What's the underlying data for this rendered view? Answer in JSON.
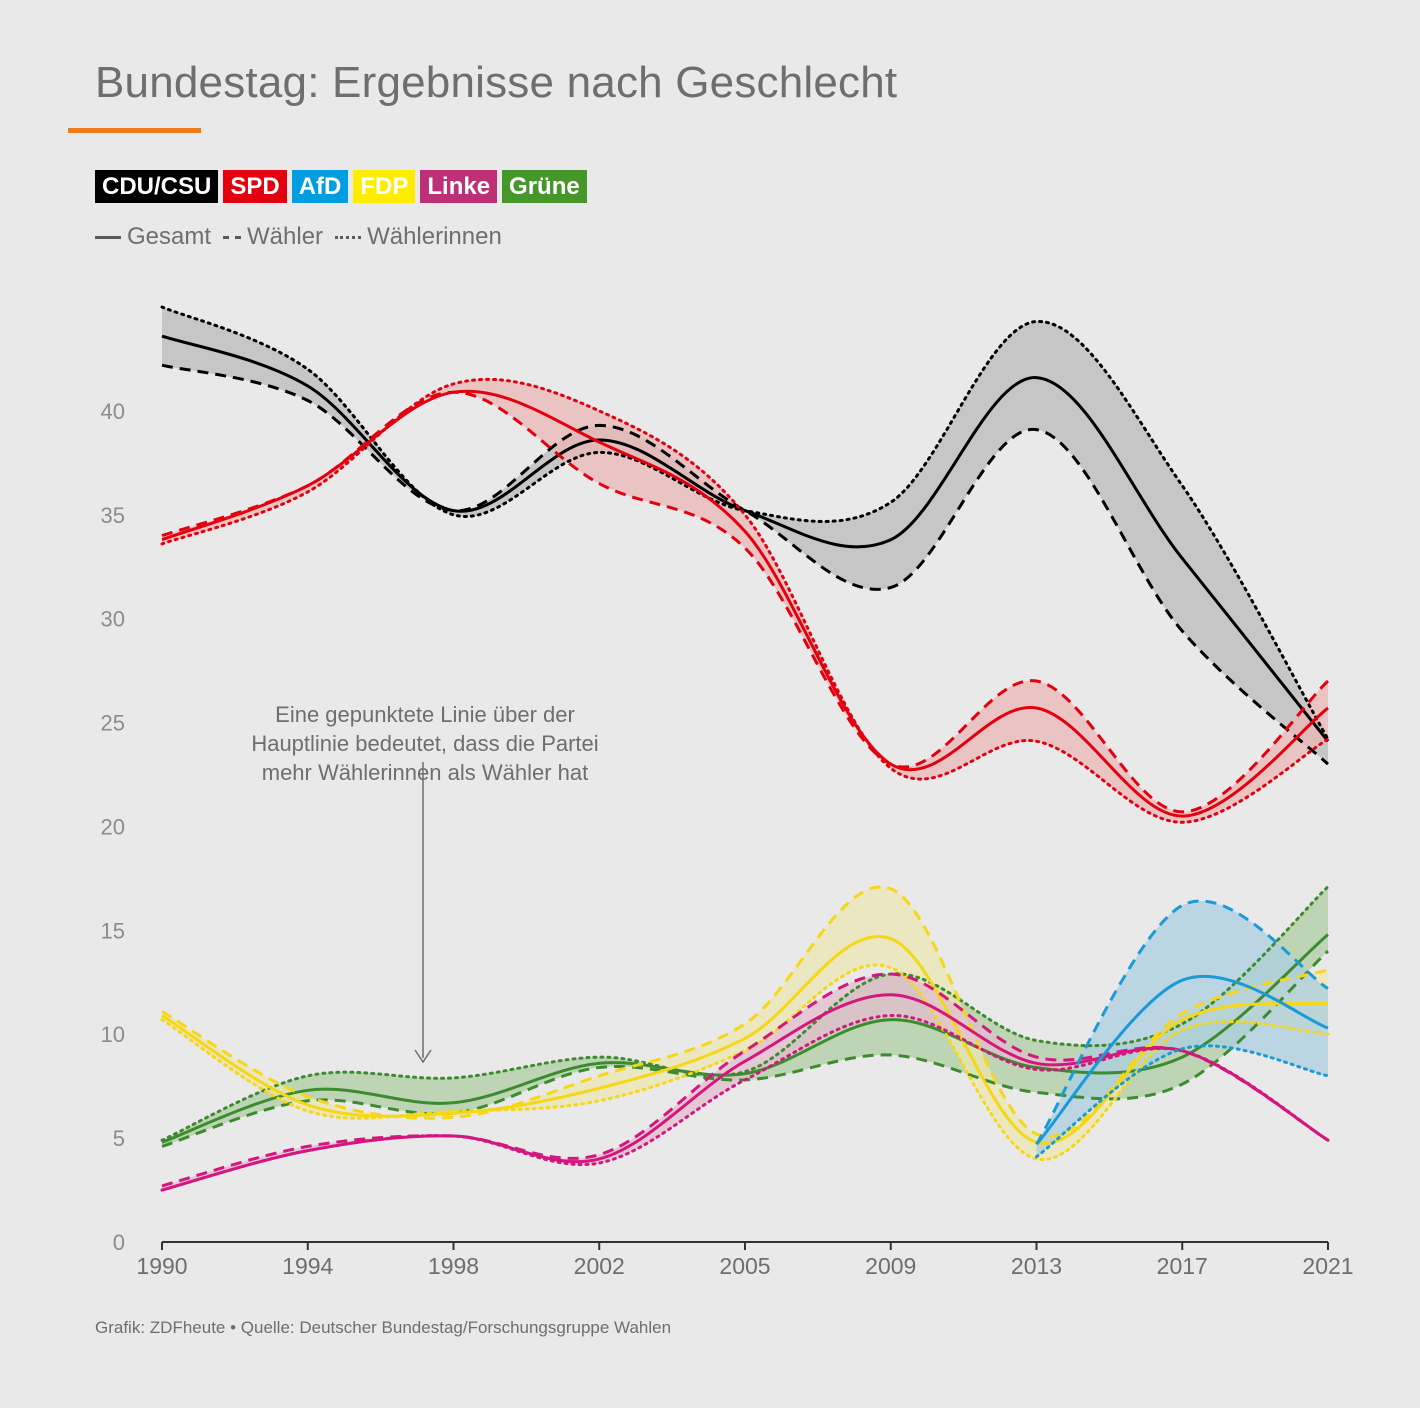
{
  "title": "Bundestag: Ergebnisse nach Geschlecht",
  "legend": {
    "parties": [
      {
        "label": "CDU/CSU",
        "color": "#000000",
        "text_color": "#ffffff"
      },
      {
        "label": "SPD",
        "color": "#e3000f",
        "text_color": "#ffffff"
      },
      {
        "label": "AfD",
        "color": "#009ee0",
        "text_color": "#ffffff"
      },
      {
        "label": "FDP",
        "color": "#ffed00",
        "text_color": "#ffffff"
      },
      {
        "label": "Linke",
        "color": "#be3075",
        "text_color": "#ffffff"
      },
      {
        "label": "Grüne",
        "color": "#46962b",
        "text_color": "#ffffff"
      }
    ],
    "styles": {
      "gesamt": "Gesamt",
      "waehler": "Wähler",
      "waehlerinnen": "Wählerinnen"
    }
  },
  "annotation": [
    "Eine gepunktete Linie über der",
    "Hauptlinie bedeutet, dass die Partei",
    "mehr Wählerinnen als Wähler hat"
  ],
  "source": "Grafik: ZDFheute • Quelle: Deutscher Bundestag/Forschungsgruppe Wahlen",
  "chart_data": {
    "type": "line",
    "title": "Bundestag: Ergebnisse nach Geschlecht",
    "categories": [
      "1990",
      "1994",
      "1998",
      "2002",
      "2005",
      "2009",
      "2013",
      "2017",
      "2021"
    ],
    "ylim": [
      0,
      45
    ],
    "yticks": [
      0,
      5,
      10,
      15,
      20,
      25,
      30,
      35,
      40
    ],
    "series": [
      {
        "name": "CDU/CSU",
        "color": "#000000",
        "fill": "#b9b9b9",
        "gesamt": [
          43.6,
          41.2,
          35.2,
          38.6,
          35.2,
          33.8,
          41.6,
          32.9,
          24.1
        ],
        "waehler": [
          42.2,
          40.5,
          35.2,
          39.3,
          35.2,
          31.5,
          39.1,
          29.4,
          23.0
        ],
        "waehlerinnen": [
          45.0,
          42.0,
          35.0,
          38.0,
          35.2,
          35.6,
          44.3,
          36.4,
          24.2
        ]
      },
      {
        "name": "SPD",
        "color": "#e3000f",
        "fill": "#eab6b6",
        "gesamt": [
          33.8,
          36.4,
          40.9,
          38.5,
          34.2,
          23.0,
          25.7,
          20.5,
          25.7
        ],
        "waehler": [
          34.0,
          36.4,
          40.9,
          36.5,
          33.4,
          23.0,
          27.0,
          20.7,
          27.0
        ],
        "waehlerinnen": [
          33.6,
          36.1,
          41.3,
          40.0,
          35.0,
          22.8,
          24.1,
          20.2,
          24.2
        ]
      },
      {
        "name": "AfD",
        "color": "#1a9ad6",
        "fill": "#abcde0",
        "gesamt": [
          null,
          null,
          null,
          null,
          null,
          null,
          4.7,
          12.6,
          10.3
        ],
        "waehler": [
          null,
          null,
          null,
          null,
          null,
          null,
          4.7,
          16.2,
          12.2
        ],
        "waehlerinnen": [
          null,
          null,
          null,
          null,
          null,
          null,
          4.1,
          9.3,
          8.0
        ]
      },
      {
        "name": "FDP",
        "color": "#f5d716",
        "fill": "#ebe5b1",
        "gesamt": [
          10.9,
          6.6,
          6.2,
          7.4,
          9.8,
          14.6,
          4.8,
          10.7,
          11.5
        ],
        "waehler": [
          11.1,
          7.0,
          6.0,
          8.0,
          10.5,
          17.0,
          5.2,
          11.0,
          13.1
        ],
        "waehlerinnen": [
          10.7,
          6.3,
          6.3,
          6.8,
          9.2,
          13.2,
          4.0,
          10.2,
          10.0
        ]
      },
      {
        "name": "Linke",
        "color": "#d4177e",
        "fill": "#e1bdcd",
        "gesamt": [
          2.5,
          4.4,
          5.1,
          4.0,
          8.7,
          11.9,
          8.6,
          9.2,
          4.9
        ],
        "waehler": [
          2.7,
          4.6,
          5.1,
          4.2,
          9.2,
          12.9,
          8.9,
          9.2,
          4.9
        ],
        "waehlerinnen": [
          2.5,
          4.4,
          5.1,
          3.8,
          7.8,
          10.9,
          8.3,
          9.2,
          4.9
        ]
      },
      {
        "name": "Grüne",
        "color": "#3d8b2f",
        "fill": "#aecda1",
        "gesamt": [
          4.8,
          7.3,
          6.7,
          8.6,
          8.1,
          10.7,
          8.4,
          8.9,
          14.8
        ],
        "waehler": [
          4.6,
          6.8,
          6.2,
          8.4,
          7.8,
          9.0,
          7.2,
          7.6,
          14.0
        ],
        "waehlerinnen": [
          4.9,
          8.0,
          7.9,
          8.9,
          8.2,
          12.9,
          9.7,
          10.5,
          17.1
        ]
      }
    ]
  }
}
